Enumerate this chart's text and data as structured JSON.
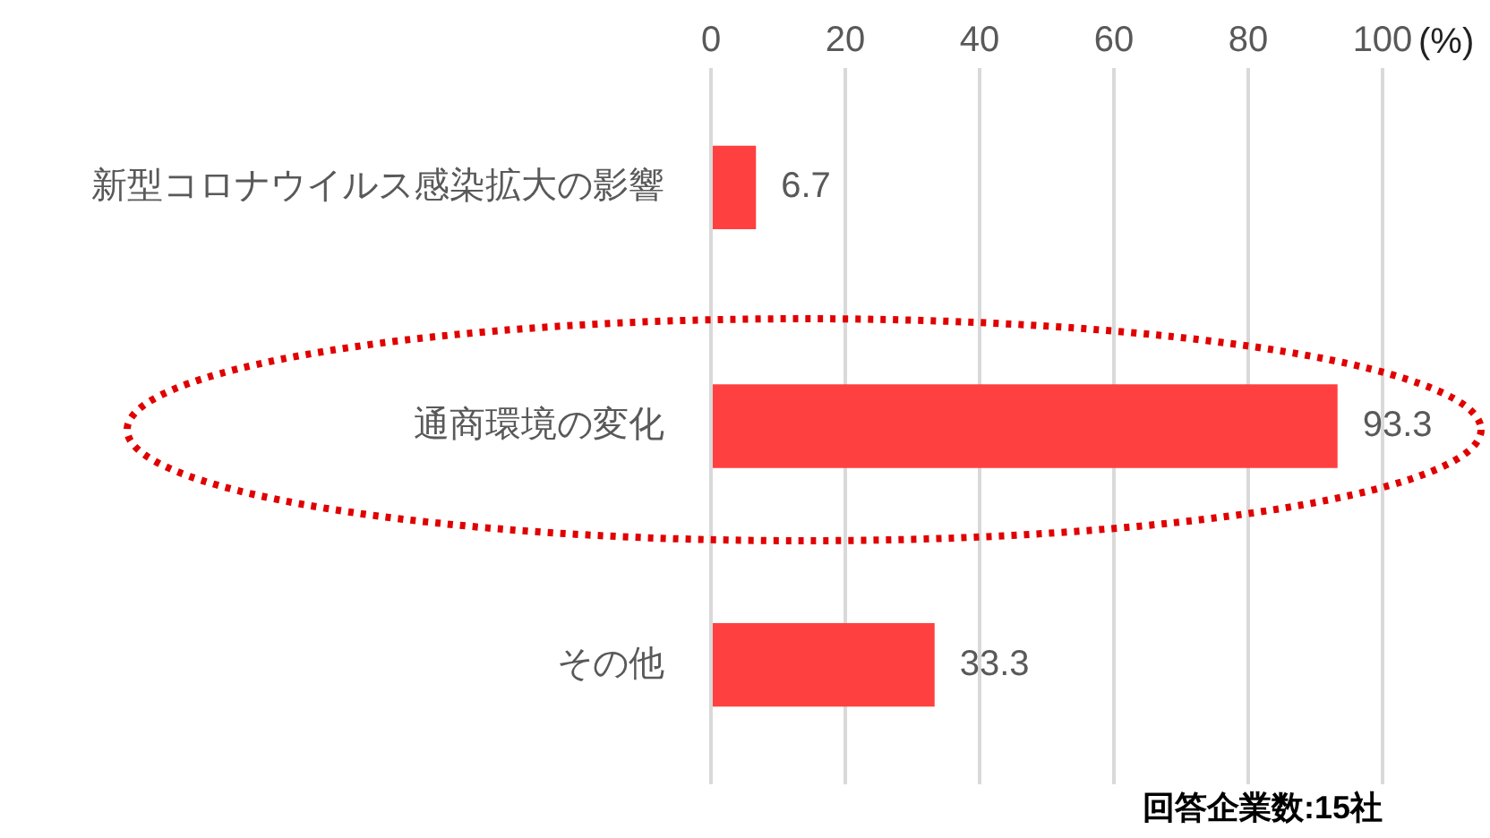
{
  "chart_data": {
    "type": "bar",
    "orientation": "horizontal",
    "xlabel": "(%)",
    "categories": [
      "新型コロナウイルス感染拡大の影響",
      "通商環境の変化",
      "その他"
    ],
    "values": [
      6.7,
      93.3,
      33.3
    ],
    "color": "#ff4040",
    "xlim": [
      0,
      100
    ],
    "xticks": [
      0,
      20,
      40,
      60,
      80,
      100
    ],
    "grid": "x",
    "data_labels": true,
    "annotations": [
      "回答企業数:15社"
    ]
  }
}
